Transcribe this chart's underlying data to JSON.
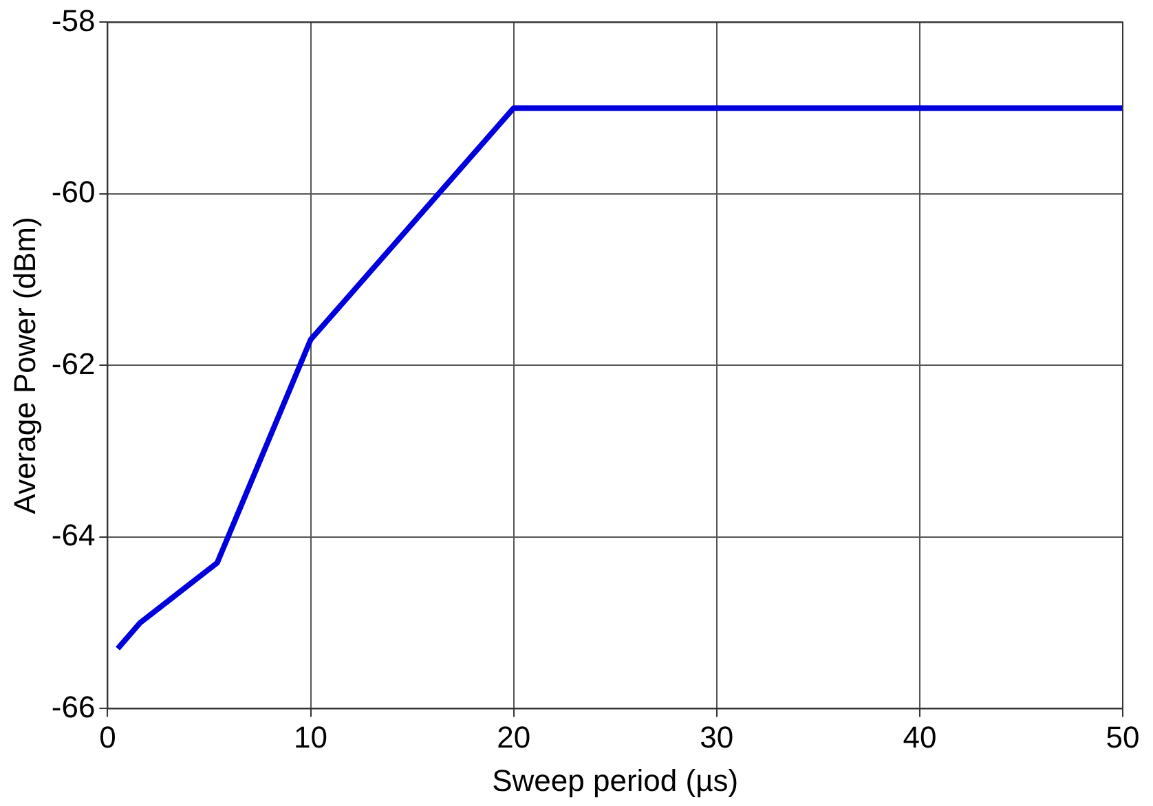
{
  "chart_data": {
    "type": "line",
    "xlabel": "Sweep period (µs)",
    "ylabel": "Average Power (dBm)",
    "x": [
      0.5,
      1.6,
      5.4,
      10,
      20,
      50
    ],
    "series": [
      {
        "color": "#0000dd",
        "values": [
          -65.3,
          -65.0,
          -64.3,
          -61.7,
          -59.0,
          -59.0
        ]
      }
    ],
    "xlim": [
      0,
      50
    ],
    "xticks": [
      0,
      10,
      20,
      30,
      40,
      50
    ],
    "ylim": [
      -66,
      -58
    ],
    "yticks": [
      -66,
      -64,
      -62,
      -60,
      -58
    ],
    "grid": true,
    "legend": false,
    "marker": "none",
    "line_style": "solid"
  }
}
